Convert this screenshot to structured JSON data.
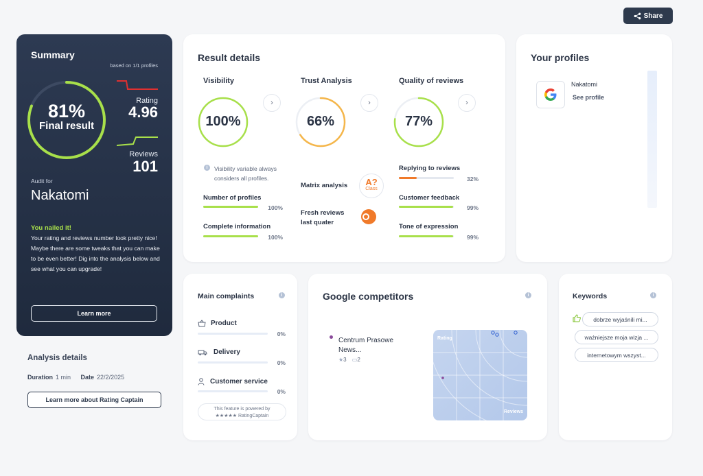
{
  "header": {
    "share_label": "Share"
  },
  "summary": {
    "title": "Summary",
    "based_on": "based on 1/1 profiles",
    "result_pct": "81%",
    "result_label": "Final result",
    "result_value": 81,
    "rating_label": "Rating",
    "rating_value": "4.96",
    "reviews_label": "Reviews",
    "reviews_value": "101",
    "audit_for_label": "Audit for",
    "audit_name": "Nakatomi",
    "nailed_title": "You nailed it!",
    "nailed_text": "Your rating and reviews number look pretty nice! Maybe there are some tweaks that you can make to be even better! Dig into the analysis below and see what you can upgrade!",
    "learn_more": "Learn more",
    "colors": {
      "accent": "#a8e04a",
      "rating_line": "#e03030"
    }
  },
  "analysis": {
    "title": "Analysis details",
    "duration_label": "Duration",
    "duration_value": "1 min",
    "date_label": "Date",
    "date_value": "22/2/2025",
    "learn_more_rc": "Learn more about Rating Captain"
  },
  "result_details": {
    "title": "Result details",
    "visibility": {
      "title": "Visibility",
      "value": "100%",
      "level": 100,
      "note": "Visibility variable always considers all profiles.",
      "metrics": [
        {
          "label": "Number of profiles",
          "pct": "100%",
          "level": 100
        },
        {
          "label": "Complete information",
          "pct": "100%",
          "level": 100
        }
      ]
    },
    "trust": {
      "title": "Trust Analysis",
      "value": "66%",
      "level": 66,
      "matrix_label": "Matrix analysis",
      "matrix_badge": "A?",
      "matrix_badge_sub": "Class",
      "fresh_label": "Fresh reviews last quater"
    },
    "quality": {
      "title": "Quality of reviews",
      "value": "77%",
      "level": 77,
      "metrics": [
        {
          "label": "Replying to reviews",
          "pct": "32%",
          "level": 32,
          "color": "#f07a2a"
        },
        {
          "label": "Customer feedback",
          "pct": "99%",
          "level": 99,
          "color": "#a8e04a"
        },
        {
          "label": "Tone of expression",
          "pct": "99%",
          "level": 99,
          "color": "#a8e04a"
        }
      ]
    }
  },
  "profiles": {
    "title": "Your profiles",
    "items": [
      {
        "name": "Nakatomi",
        "link": "See profile",
        "icon": "google-icon"
      }
    ]
  },
  "complaints": {
    "title": "Main complaints",
    "items": [
      {
        "label": "Product",
        "pct": "0%",
        "icon": "basket-icon"
      },
      {
        "label": "Delivery",
        "pct": "0%",
        "icon": "truck-icon"
      },
      {
        "label": "Customer service",
        "pct": "0%",
        "icon": "person-icon"
      }
    ],
    "powered_line1": "This feature is powered by",
    "powered_line2": "★★★★★ RatingCaptain"
  },
  "competitors": {
    "title": "Google competitors",
    "items": [
      {
        "name": "Centrum Prasowe News...",
        "stars": "3",
        "comments": "2"
      }
    ],
    "map_label_top": "Rating",
    "map_label_bottom": "Reviews"
  },
  "keywords": {
    "title": "Keywords",
    "items": [
      "dobrze wyjaśnili mi...",
      "ważniejsze moja wizja ...",
      "internetowym wszyst..."
    ]
  }
}
